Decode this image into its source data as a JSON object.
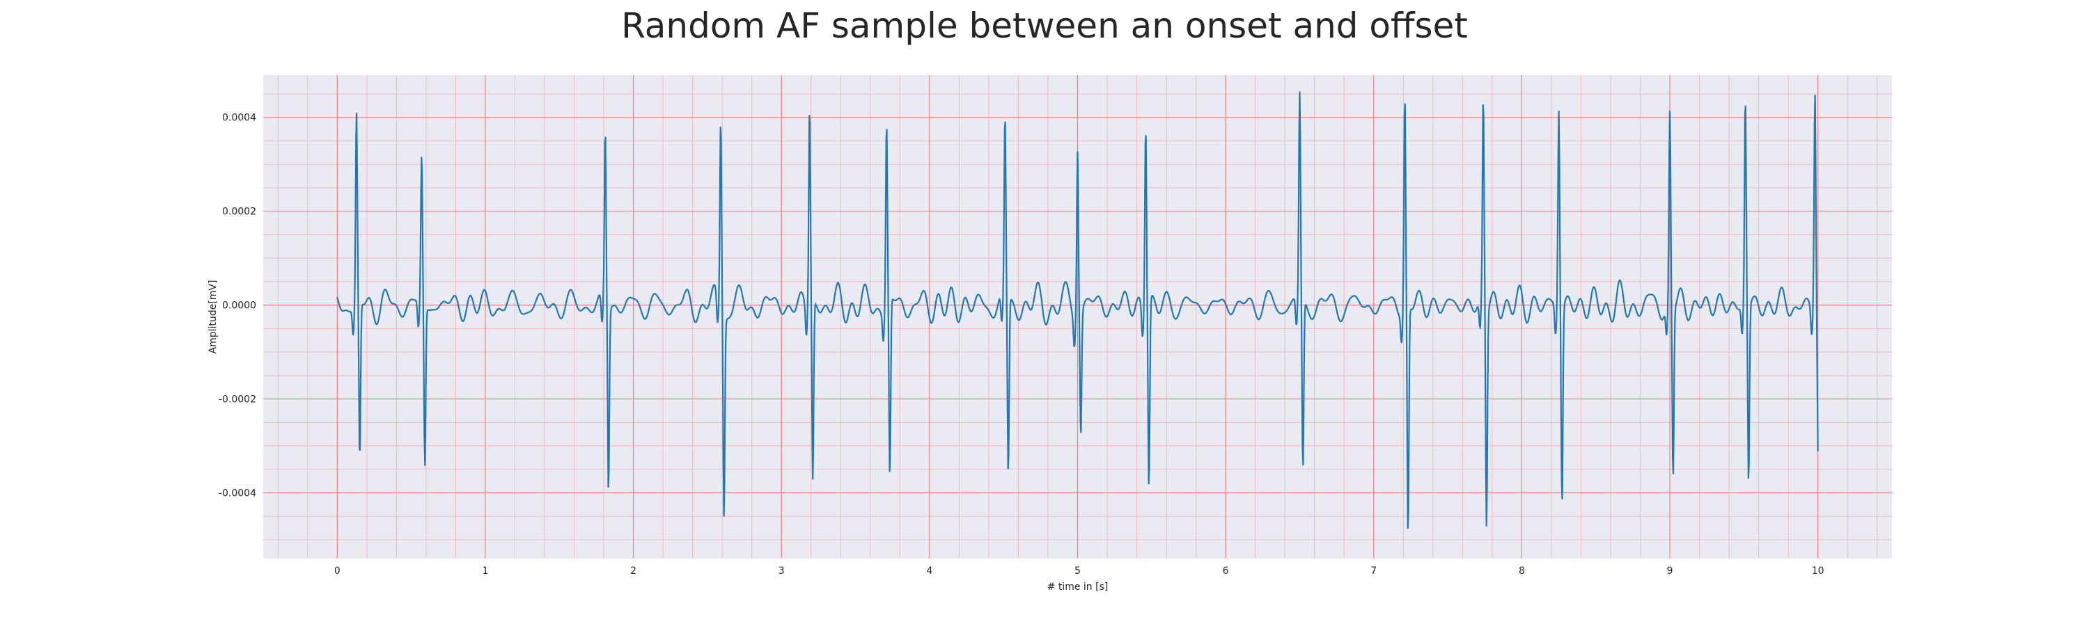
{
  "chart_data": {
    "type": "line",
    "title": "Random AF sample between an onset and offset",
    "xlabel": "# time in [s]",
    "ylabel": "Amplitude[mV]",
    "xlim": [
      -0.5,
      10.5
    ],
    "ylim": [
      -0.00054,
      0.00049
    ],
    "x_ticks": [
      "0",
      "1",
      "2",
      "3",
      "4",
      "5",
      "6",
      "7",
      "8",
      "9",
      "10"
    ],
    "y_ticks": [
      "0.0004",
      "0.0002",
      "0.0000",
      "-0.0002",
      "-0.0004"
    ],
    "grid": true,
    "colors": {
      "line": "#1f77b4",
      "plot_background": "#eaeaf2",
      "major_grid": "#f08080",
      "minor_grid": "#f4b8c0"
    },
    "beats": [
      {
        "t": 0.13,
        "peak": 0.0004,
        "trough": -0.00034
      },
      {
        "t": 0.57,
        "peak": 0.00031,
        "trough": -0.00034
      },
      {
        "t": 1.81,
        "peak": 0.00037,
        "trough": -0.00039
      },
      {
        "t": 2.59,
        "peak": 0.00041,
        "trough": -0.00042
      },
      {
        "t": 3.19,
        "peak": 0.00043,
        "trough": -0.00038
      },
      {
        "t": 3.71,
        "peak": 0.00039,
        "trough": -0.00038
      },
      {
        "t": 4.51,
        "peak": 0.00039,
        "trough": -0.00037
      },
      {
        "t": 5.0,
        "peak": 0.00036,
        "trough": -0.00026
      },
      {
        "t": 5.46,
        "peak": 0.0004,
        "trough": -0.00039
      },
      {
        "t": 6.5,
        "peak": 0.00044,
        "trough": -0.00036
      },
      {
        "t": 7.21,
        "peak": 0.00045,
        "trough": -0.00049
      },
      {
        "t": 7.74,
        "peak": 0.00044,
        "trough": -0.00046
      },
      {
        "t": 8.25,
        "peak": 0.00043,
        "trough": -0.00041
      },
      {
        "t": 9.0,
        "peak": 0.00041,
        "trough": -0.00036
      },
      {
        "t": 9.51,
        "peak": 0.00044,
        "trough": -0.00038
      },
      {
        "t": 9.98,
        "peak": 0.00045,
        "trough": -0.00035
      }
    ],
    "baseline_noise_amplitude": 4e-05
  }
}
